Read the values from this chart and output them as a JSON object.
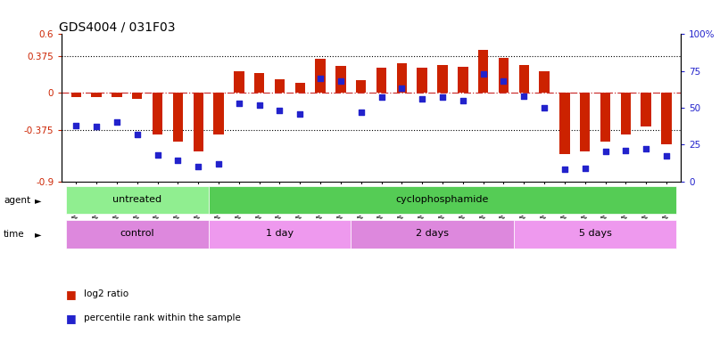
{
  "title": "GDS4004 / 031F03",
  "samples": [
    "GSM677940",
    "GSM677941",
    "GSM677942",
    "GSM677943",
    "GSM677944",
    "GSM677945",
    "GSM677946",
    "GSM677947",
    "GSM677948",
    "GSM677949",
    "GSM677950",
    "GSM677951",
    "GSM677952",
    "GSM677953",
    "GSM677954",
    "GSM677955",
    "GSM677956",
    "GSM677957",
    "GSM677958",
    "GSM677959",
    "GSM677960",
    "GSM677961",
    "GSM677962",
    "GSM677963",
    "GSM677964",
    "GSM677965",
    "GSM677966",
    "GSM677967",
    "GSM677968",
    "GSM677969"
  ],
  "log2_ratio": [
    -0.04,
    -0.04,
    -0.04,
    -0.06,
    -0.42,
    -0.5,
    -0.6,
    -0.42,
    0.22,
    0.2,
    0.14,
    0.1,
    0.35,
    0.28,
    0.13,
    0.26,
    0.3,
    0.26,
    0.29,
    0.27,
    0.44,
    0.36,
    0.29,
    0.22,
    -0.62,
    -0.6,
    -0.5,
    -0.42,
    -0.34,
    -0.52
  ],
  "percentile": [
    38,
    37,
    40,
    32,
    18,
    14,
    10,
    12,
    53,
    52,
    48,
    46,
    70,
    68,
    47,
    57,
    63,
    56,
    57,
    55,
    73,
    68,
    58,
    50,
    8,
    9,
    20,
    21,
    22,
    17
  ],
  "agent_groups": [
    {
      "label": "untreated",
      "start": 0,
      "end": 7,
      "color": "#90ee90"
    },
    {
      "label": "cyclophosphamide",
      "start": 7,
      "end": 30,
      "color": "#55cc55"
    }
  ],
  "time_groups": [
    {
      "label": "control",
      "start": 0,
      "end": 7,
      "color": "#dd88dd"
    },
    {
      "label": "1 day",
      "start": 7,
      "end": 14,
      "color": "#ee99ee"
    },
    {
      "label": "2 days",
      "start": 14,
      "end": 22,
      "color": "#dd88dd"
    },
    {
      "label": "5 days",
      "start": 22,
      "end": 30,
      "color": "#ee99ee"
    }
  ],
  "ylim_left": [
    -0.9,
    0.6
  ],
  "ylim_right": [
    0,
    100
  ],
  "yticks_left": [
    -0.9,
    -0.375,
    0.0,
    0.375,
    0.6
  ],
  "ytick_labels_left": [
    "-0.9",
    "-0.375",
    "0",
    "0.375",
    "0.6"
  ],
  "yticks_right": [
    0,
    25,
    50,
    75,
    100
  ],
  "hlines": [
    0.375,
    -0.375
  ],
  "bar_color": "#cc2200",
  "dot_color": "#2222cc",
  "zero_line_color": "#cc3333",
  "legend_items": [
    {
      "label": "log2 ratio",
      "color": "#cc2200"
    },
    {
      "label": "percentile rank within the sample",
      "color": "#2222cc"
    }
  ]
}
